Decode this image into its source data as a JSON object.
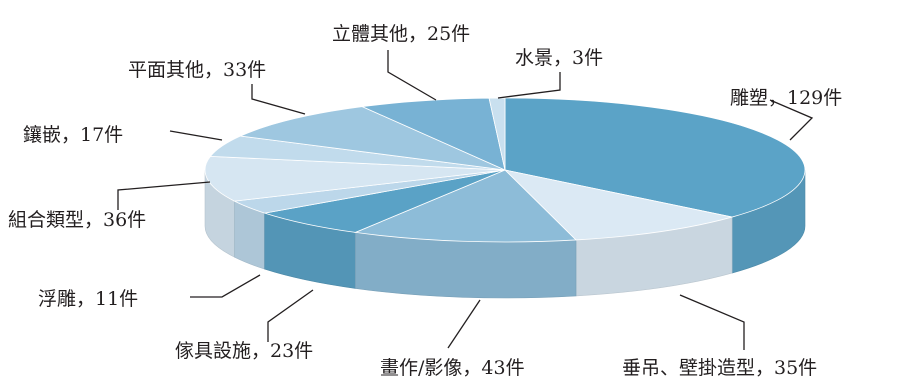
{
  "chart_data": {
    "type": "pie",
    "title": "",
    "style": "3d-exploded",
    "unit_suffix": "件",
    "slices": [
      {
        "category": "雕塑",
        "value": 129,
        "label": "雕塑，129件",
        "color": "#5ba3c7"
      },
      {
        "category": "垂吊、壁掛造型",
        "value": 35,
        "label": "垂吊、壁掛造型，35件",
        "color": "#dbe9f4"
      },
      {
        "category": "畫作/影像",
        "value": 43,
        "label": "畫作/影像，43件",
        "color": "#8dbcd8"
      },
      {
        "category": "傢具設施",
        "value": 23,
        "label": "傢具設施，23件",
        "color": "#5aa2c6"
      },
      {
        "category": "浮雕",
        "value": 11,
        "label": "浮雕，11件",
        "color": "#bcd7ea"
      },
      {
        "category": "組合類型",
        "value": 36,
        "label": "組合類型，36件",
        "color": "#d6e6f2"
      },
      {
        "category": "鑲嵌",
        "value": 17,
        "label": "鑲嵌，17件",
        "color": "#c1dbec"
      },
      {
        "category": "平面其他",
        "value": 33,
        "label": "平面其他，33件",
        "color": "#9ec7e0"
      },
      {
        "category": "立體其他",
        "value": 25,
        "label": "立體其他，25件",
        "color": "#78b2d4"
      },
      {
        "category": "水景",
        "value": 3,
        "label": "水景，3件",
        "color": "#c9e0ef"
      }
    ]
  }
}
